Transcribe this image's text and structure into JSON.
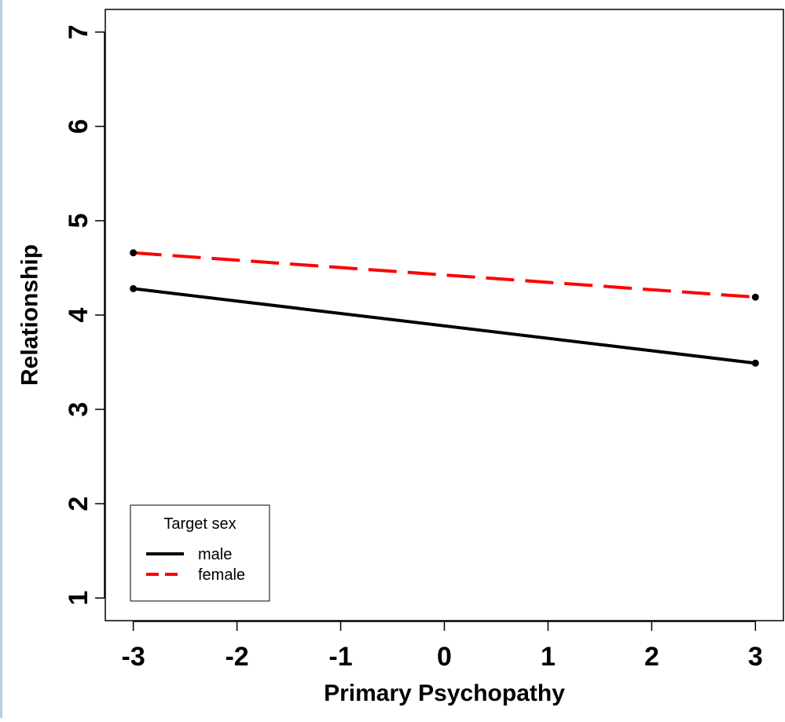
{
  "chart_data": {
    "type": "line",
    "title": "",
    "xlabel": "Primary Psychopathy",
    "ylabel": "Relationship",
    "xlim": [
      -3.27,
      3.27
    ],
    "ylim": [
      0.76,
      7.24
    ],
    "x_ticks": [
      -3,
      -2,
      -1,
      0,
      1,
      2,
      3
    ],
    "y_ticks": [
      1,
      2,
      3,
      4,
      5,
      6,
      7
    ],
    "grid": false,
    "legend": {
      "title": "Target sex",
      "position": "bottom-left",
      "entries": [
        "male",
        "female"
      ]
    },
    "series": [
      {
        "name": "male",
        "color": "#000000",
        "style": "solid",
        "x": [
          -3,
          3
        ],
        "y": [
          4.28,
          3.49
        ]
      },
      {
        "name": "female",
        "color": "#ff0000",
        "style": "dashed",
        "x": [
          -3,
          3
        ],
        "y": [
          4.66,
          4.19
        ]
      }
    ]
  }
}
